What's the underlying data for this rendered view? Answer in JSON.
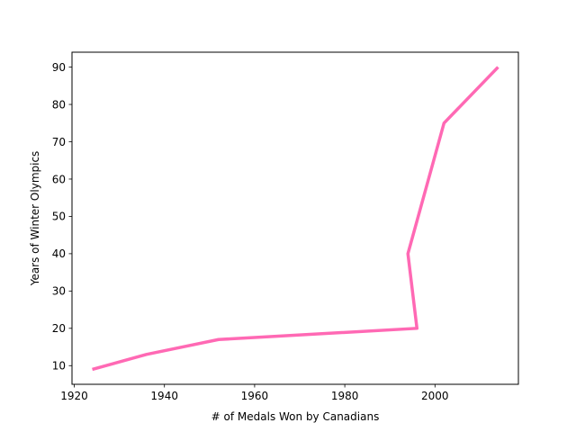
{
  "chart_data": {
    "type": "line",
    "title": "",
    "xlabel": "# of Medals Won by Canadians",
    "ylabel": "Years of Winter Olympics",
    "xlim": [
      1919.5,
      2018.5
    ],
    "ylim": [
      5.0,
      94.0
    ],
    "x_ticks": [
      1920,
      1940,
      1960,
      1980,
      2000
    ],
    "y_ticks": [
      10,
      20,
      30,
      40,
      50,
      60,
      70,
      80,
      90
    ],
    "grid": false,
    "legend": "none",
    "series": [
      {
        "color": "#ff69b4",
        "points": [
          {
            "x": 1924,
            "y": 9
          },
          {
            "x": 1936,
            "y": 13
          },
          {
            "x": 1952,
            "y": 17
          },
          {
            "x": 1996,
            "y": 20
          },
          {
            "x": 1994,
            "y": 40
          },
          {
            "x": 2002,
            "y": 75
          },
          {
            "x": 2014,
            "y": 90
          }
        ]
      }
    ]
  }
}
